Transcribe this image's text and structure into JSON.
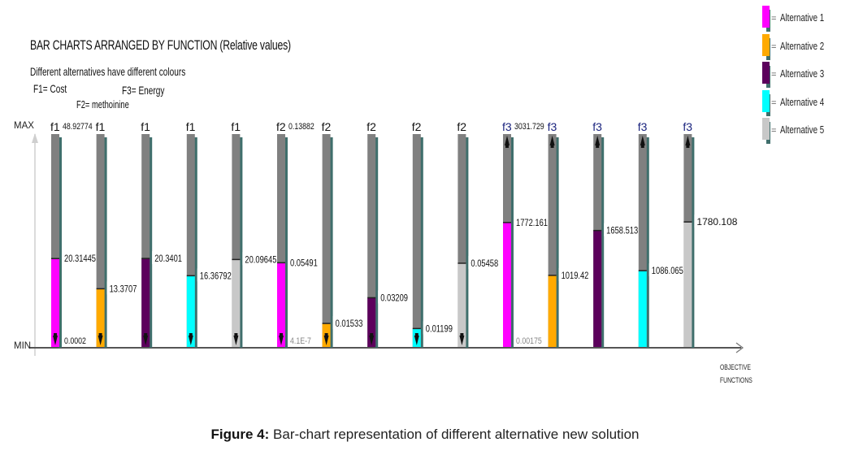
{
  "header": {
    "title": "BAR CHARTS ARRANGED BY FUNCTION (Relative values)",
    "subtitle": "Different alternatives have different colours",
    "function_definitions": [
      {
        "key": "F1",
        "label": "F1= Cost"
      },
      {
        "key": "F2",
        "label": "F2= methoinine"
      },
      {
        "key": "F3",
        "label": "F3= Energy"
      }
    ]
  },
  "caption": {
    "prefix": "Figure 4:",
    "text": " Bar-chart representation of different alternative new solution"
  },
  "chart_data": {
    "type": "bar",
    "title": "BAR CHARTS ARRANGED BY FUNCTION (Relative values)",
    "xlabel": "OBJECTIVE FUNCTIONS",
    "ylabel": "",
    "y_axis_labels": {
      "max": "MAX",
      "min": "MIN"
    },
    "grid": false,
    "legend_position": "top-right",
    "colors": {
      "Alternative 1": "#ff00ff",
      "Alternative 2": "#ffaa00",
      "Alternative 3": "#5c005c",
      "Alternative 4": "#00ffff",
      "Alternative 5": "#c8c8c8",
      "background_bar": "#808080",
      "bar_shadow": "#3f6f6c"
    },
    "legend": [
      "Alternative 1",
      "Alternative 2",
      "Alternative 3",
      "Alternative 4",
      "Alternative 5"
    ],
    "groups": [
      {
        "function": "f1",
        "max_label": "48.92774",
        "min_label": "0.0002",
        "range": [
          0.0002,
          48.92774
        ],
        "label_color": "#111111",
        "arrow": "down",
        "bars": [
          {
            "alternative": "Alternative 1",
            "value": 20.31445,
            "label": "20.31445"
          },
          {
            "alternative": "Alternative 2",
            "value": 13.3707,
            "label": "13.3707"
          },
          {
            "alternative": "Alternative 3",
            "value": 20.3401,
            "label": "20.3401"
          },
          {
            "alternative": "Alternative 4",
            "value": 16.36792,
            "label": "16.36792"
          },
          {
            "alternative": "Alternative 5",
            "value": 20.09645,
            "label": "20.09645"
          }
        ]
      },
      {
        "function": "f2",
        "max_label": "0.13882",
        "min_label": "4.1E-7",
        "range": [
          4.1e-07,
          0.13882
        ],
        "label_color": "#111111",
        "arrow": "down",
        "bars": [
          {
            "alternative": "Alternative 1",
            "value": 0.05491,
            "label": "0.05491"
          },
          {
            "alternative": "Alternative 2",
            "value": 0.01533,
            "label": "0.01533"
          },
          {
            "alternative": "Alternative 3",
            "value": 0.03209,
            "label": "0.03209"
          },
          {
            "alternative": "Alternative 4",
            "value": 0.01199,
            "label": "0.01199"
          },
          {
            "alternative": "Alternative 5",
            "value": 0.05458,
            "label": "0.05458"
          }
        ]
      },
      {
        "function": "f3",
        "max_label": "3031.729",
        "min_label": "0.00175",
        "range": [
          0.00175,
          3031.729
        ],
        "label_color": "#1a237e",
        "arrow": "up",
        "bars": [
          {
            "alternative": "Alternative 1",
            "value": 1772.161,
            "label": "1772.161"
          },
          {
            "alternative": "Alternative 2",
            "value": 1019.42,
            "label": "1019.42"
          },
          {
            "alternative": "Alternative 3",
            "value": 1658.513,
            "label": "1658.513"
          },
          {
            "alternative": "Alternative 4",
            "value": 1086.065,
            "label": "1086.065"
          },
          {
            "alternative": "Alternative 5",
            "value": 1780.108,
            "label": "1780.108"
          }
        ]
      }
    ]
  }
}
